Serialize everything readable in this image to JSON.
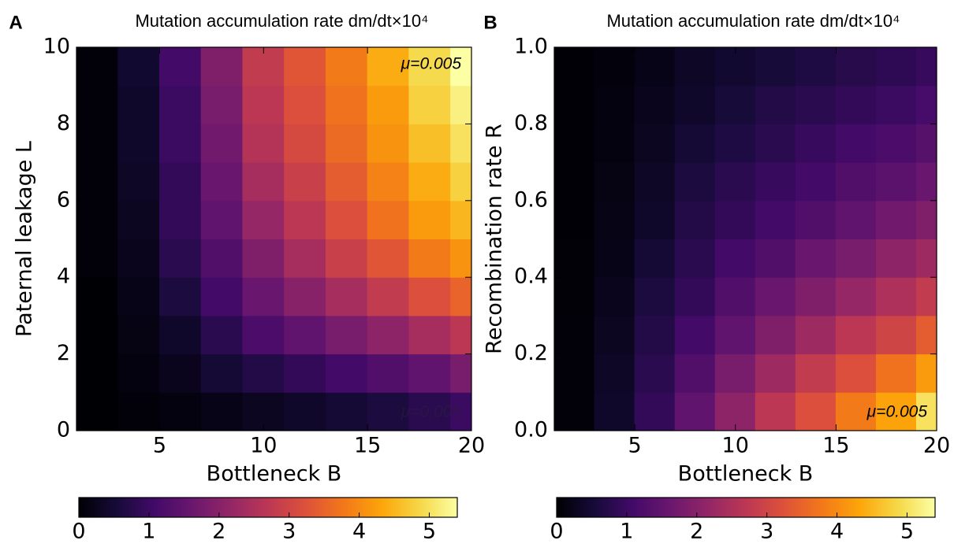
{
  "chart_data": [
    {
      "type": "heatmap",
      "panel_label": "A",
      "title": "Mutation accumulation rate dm/dt×10⁴",
      "xlabel": "Bottleneck B",
      "ylabel": "Paternal leakage L",
      "annotations": [
        "μ=0.005",
        "μ=0.005"
      ],
      "x": [
        2,
        4,
        6,
        8,
        10,
        12,
        14,
        16,
        18,
        20
      ],
      "y": [
        0.5,
        1.5,
        2.5,
        3.5,
        4.5,
        5.5,
        6.5,
        7.5,
        8.5,
        9.5
      ],
      "z": [
        [
          0.0,
          0.05,
          0.1,
          0.2,
          0.3,
          0.4,
          0.5,
          0.6,
          0.8,
          1.0
        ],
        [
          0.0,
          0.1,
          0.25,
          0.5,
          0.7,
          0.9,
          1.1,
          1.3,
          1.5,
          1.8
        ],
        [
          0.0,
          0.15,
          0.4,
          0.8,
          1.2,
          1.5,
          1.8,
          2.1,
          2.4,
          2.7
        ],
        [
          0.0,
          0.2,
          0.6,
          1.1,
          1.6,
          2.0,
          2.4,
          2.8,
          3.2,
          3.5
        ],
        [
          0.05,
          0.25,
          0.8,
          1.3,
          1.9,
          2.4,
          2.9,
          3.3,
          3.8,
          4.1
        ],
        [
          0.05,
          0.3,
          0.9,
          1.5,
          2.2,
          2.7,
          3.2,
          3.7,
          4.2,
          4.5
        ],
        [
          0.05,
          0.35,
          0.9,
          1.6,
          2.4,
          2.9,
          3.4,
          3.9,
          4.4,
          4.8
        ],
        [
          0.05,
          0.4,
          1.0,
          1.7,
          2.6,
          3.1,
          3.6,
          4.1,
          4.6,
          5.0
        ],
        [
          0.05,
          0.4,
          1.0,
          1.8,
          2.7,
          3.2,
          3.7,
          4.2,
          4.8,
          5.2
        ],
        [
          0.05,
          0.45,
          1.1,
          1.9,
          2.8,
          3.3,
          3.8,
          4.4,
          4.9,
          5.4
        ]
      ],
      "colormap": "inferno",
      "xlim": [
        1,
        20
      ],
      "xticks": [
        5,
        10,
        15,
        20
      ],
      "ylim": [
        0,
        10
      ],
      "yticks": [
        0,
        2,
        4,
        6,
        8,
        10
      ],
      "colorbar": {
        "lim": [
          0,
          5.4
        ],
        "ticks": [
          0,
          1,
          2,
          3,
          4,
          5
        ]
      }
    },
    {
      "type": "heatmap",
      "panel_label": "B",
      "title": "Mutation accumulation rate dm/dt×10⁴",
      "xlabel": "Bottleneck B",
      "ylabel": "Recombination rate R",
      "annotations": [
        "μ=0.005"
      ],
      "x": [
        2,
        4,
        6,
        8,
        10,
        12,
        14,
        16,
        18,
        20
      ],
      "y": [
        0.05,
        0.15,
        0.25,
        0.35,
        0.45,
        0.55,
        0.65,
        0.75,
        0.85,
        0.95
      ],
      "z": [
        [
          0.05,
          0.4,
          0.9,
          1.5,
          2.1,
          2.7,
          3.2,
          3.8,
          4.3,
          5.0
        ],
        [
          0.05,
          0.35,
          0.8,
          1.3,
          1.8,
          2.3,
          2.8,
          3.2,
          3.7,
          4.2
        ],
        [
          0.05,
          0.3,
          0.7,
          1.1,
          1.5,
          1.9,
          2.3,
          2.7,
          3.0,
          3.4
        ],
        [
          0.03,
          0.25,
          0.6,
          0.9,
          1.3,
          1.6,
          1.9,
          2.2,
          2.5,
          2.8
        ],
        [
          0.03,
          0.2,
          0.5,
          0.8,
          1.1,
          1.3,
          1.6,
          1.8,
          2.1,
          2.3
        ],
        [
          0.02,
          0.18,
          0.4,
          0.7,
          0.9,
          1.1,
          1.3,
          1.5,
          1.7,
          1.9
        ],
        [
          0.02,
          0.15,
          0.35,
          0.6,
          0.8,
          0.95,
          1.1,
          1.3,
          1.4,
          1.6
        ],
        [
          0.02,
          0.12,
          0.3,
          0.5,
          0.65,
          0.8,
          0.95,
          1.1,
          1.2,
          1.35
        ],
        [
          0.02,
          0.1,
          0.25,
          0.4,
          0.55,
          0.7,
          0.8,
          0.9,
          1.0,
          1.15
        ],
        [
          0.02,
          0.08,
          0.2,
          0.35,
          0.45,
          0.55,
          0.65,
          0.75,
          0.85,
          0.95
        ]
      ],
      "colormap": "inferno",
      "xlim": [
        1,
        20
      ],
      "xticks": [
        5,
        10,
        15,
        20
      ],
      "ylim": [
        0,
        1
      ],
      "yticks": [
        {
          "value": 0,
          "label": "0.0"
        },
        0.2,
        0.4,
        0.6,
        0.8,
        {
          "value": 1,
          "label": "1.0"
        }
      ],
      "colorbar": {
        "lim": [
          0,
          5.4
        ],
        "ticks": [
          0,
          1,
          2,
          3,
          4,
          5
        ]
      }
    }
  ]
}
